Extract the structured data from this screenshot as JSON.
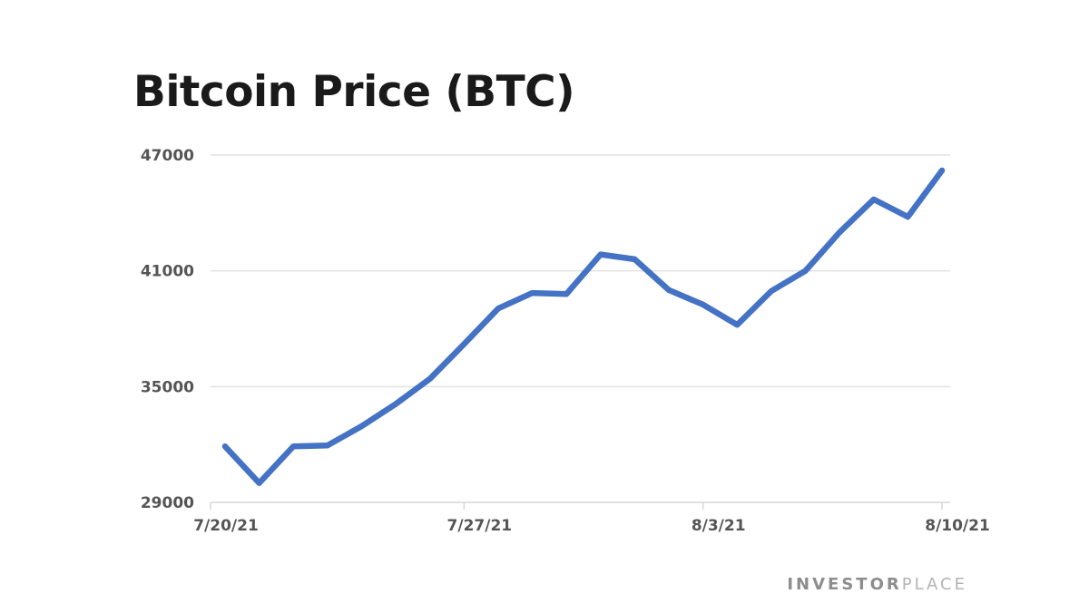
{
  "chart_data": {
    "type": "line",
    "title": "Bitcoin Price (BTC)",
    "xlabel": "",
    "ylabel": "",
    "ylim": [
      29000,
      47000
    ],
    "yticks": [
      "29000",
      "35000",
      "41000",
      "47000"
    ],
    "xticks": [
      "7/20/21",
      "7/27/21",
      "8/3/21",
      "8/10/21"
    ],
    "grid": true,
    "legend": "none",
    "x": [
      "7/20/21",
      "7/21/21",
      "7/22/21",
      "7/23/21",
      "7/24/21",
      "7/25/21",
      "7/26/21",
      "7/27/21",
      "7/28/21",
      "7/29/21",
      "7/30/21",
      "7/31/21",
      "8/1/21",
      "8/2/21",
      "8/3/21",
      "8/4/21",
      "8/5/21",
      "8/6/21",
      "8/7/21",
      "8/8/21",
      "8/9/21",
      "8/10/21"
    ],
    "series": [
      {
        "values": [
          31900,
          30000,
          31900,
          31950,
          32950,
          34100,
          35400,
          37200,
          39050,
          39850,
          39800,
          41850,
          41600,
          40000,
          39250,
          38200,
          39950,
          41000,
          43000,
          44700,
          43800,
          46200
        ],
        "color": "#4472c4"
      }
    ]
  },
  "brand": {
    "part1": "INVESTOR",
    "part2": "PLACE"
  }
}
